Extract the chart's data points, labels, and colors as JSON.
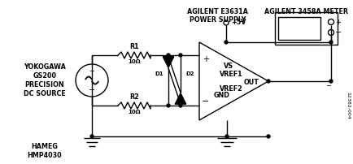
{
  "bg_color": "#ffffff",
  "line_color": "#000000",
  "text_color": "#000000",
  "labels": {
    "yokogawa": "YOKOGAWA\nGS200\nPRECISION\nDC SOURCE",
    "hameg": "HAMEG\nHMP4030",
    "r1": "R1",
    "r1_val": "10Ω",
    "r2": "R2",
    "r2_val": "10Ω",
    "d1": "D1",
    "d2": "D2",
    "vs": "VS",
    "vref1": "VREF1",
    "vref2": "VREF2",
    "out": "OUT",
    "gnd": "GND",
    "plus5v": "+5V",
    "agilent_ps": "AGILENT E3631A\nPOWER SUPPLY",
    "agilent_meter": "AGILENT 3458A METER",
    "fig_label": "12382-004"
  }
}
